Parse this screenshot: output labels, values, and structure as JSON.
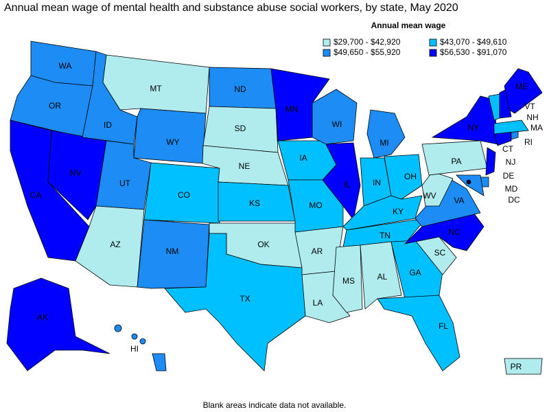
{
  "title": "Annual mean wage of mental health and substance abuse social workers, by state, May 2020",
  "legend": {
    "title": "Annual mean wage",
    "items": [
      {
        "label": "$29,700 - $42,920",
        "color": "#b0ecee"
      },
      {
        "label": "$49,650 - $55,920",
        "color": "#1e8cf5"
      },
      {
        "label": "$43,070 - $49,610",
        "color": "#00c0ff"
      },
      {
        "label": "$56,530 - $91,070",
        "color": "#0000ff"
      }
    ]
  },
  "states": [
    {
      "label": "WA",
      "color": "#1e8cf5"
    },
    {
      "label": "OR",
      "color": "#1e8cf5"
    },
    {
      "label": "CA",
      "color": "#0000ff"
    },
    {
      "label": "NV",
      "color": "#0000ff"
    },
    {
      "label": "ID",
      "color": "#1e8cf5"
    },
    {
      "label": "MT",
      "color": "#b0ecee"
    },
    {
      "label": "WY",
      "color": "#1e8cf5"
    },
    {
      "label": "UT",
      "color": "#1e8cf5"
    },
    {
      "label": "AZ",
      "color": "#b0ecee"
    },
    {
      "label": "CO",
      "color": "#00c0ff"
    },
    {
      "label": "NM",
      "color": "#1e8cf5"
    },
    {
      "label": "ND",
      "color": "#1e8cf5"
    },
    {
      "label": "SD",
      "color": "#b0ecee"
    },
    {
      "label": "NE",
      "color": "#b0ecee"
    },
    {
      "label": "KS",
      "color": "#00c0ff"
    },
    {
      "label": "OK",
      "color": "#b0ecee"
    },
    {
      "label": "TX",
      "color": "#00c0ff"
    },
    {
      "label": "MN",
      "color": "#0000ff"
    },
    {
      "label": "IA",
      "color": "#00c0ff"
    },
    {
      "label": "MO",
      "color": "#00c0ff"
    },
    {
      "label": "AR",
      "color": "#b0ecee"
    },
    {
      "label": "LA",
      "color": "#b0ecee"
    },
    {
      "label": "WI",
      "color": "#1e8cf5"
    },
    {
      "label": "IL",
      "color": "#0000ff"
    },
    {
      "label": "MI",
      "color": "#1e8cf5"
    },
    {
      "label": "IN",
      "color": "#00c0ff"
    },
    {
      "label": "OH",
      "color": "#00c0ff"
    },
    {
      "label": "KY",
      "color": "#00c0ff"
    },
    {
      "label": "TN",
      "color": "#00c0ff"
    },
    {
      "label": "MS",
      "color": "#b0ecee"
    },
    {
      "label": "AL",
      "color": "#b0ecee"
    },
    {
      "label": "GA",
      "color": "#00c0ff"
    },
    {
      "label": "FL",
      "color": "#00c0ff"
    },
    {
      "label": "SC",
      "color": "#b0ecee"
    },
    {
      "label": "NC",
      "color": "#0000ff"
    },
    {
      "label": "VA",
      "color": "#1e8cf5"
    },
    {
      "label": "WV",
      "color": "#b0ecee"
    },
    {
      "label": "PA",
      "color": "#b0ecee"
    },
    {
      "label": "NY",
      "color": "#0000ff"
    },
    {
      "label": "NJ",
      "color": "#0000ff"
    },
    {
      "label": "DE",
      "color": "#1e8cf5"
    },
    {
      "label": "MD",
      "color": "#1e8cf5"
    },
    {
      "label": "DC",
      "color": "#000033"
    },
    {
      "label": "CT",
      "color": "#0000ff"
    },
    {
      "label": "RI",
      "color": "#1e8cf5"
    },
    {
      "label": "MA",
      "color": "#00c0ff"
    },
    {
      "label": "VT",
      "color": "#00c0ff"
    },
    {
      "label": "NH",
      "color": "#0000ff"
    },
    {
      "label": "ME",
      "color": "#0000ff"
    },
    {
      "label": "AK",
      "color": "#0000ff"
    },
    {
      "label": "HI",
      "color": "#1e8cf5"
    },
    {
      "label": "PR",
      "color": "#b0ecee"
    }
  ],
  "footnote": "Blank areas indicate data not available."
}
